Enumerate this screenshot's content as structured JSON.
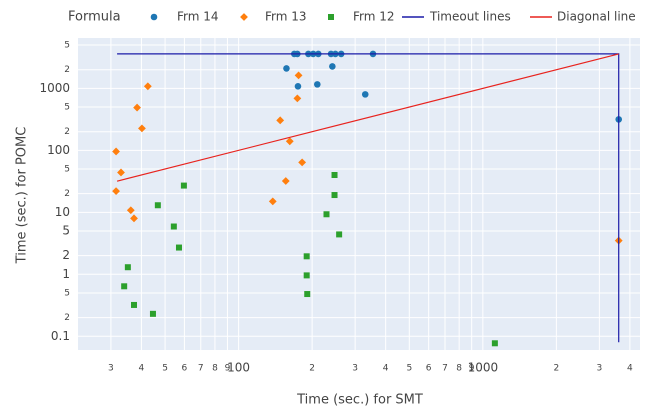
{
  "chart_data": {
    "type": "scatter",
    "x_label": "Time (sec.) for SMT",
    "y_label": "Time (sec.) for POMC",
    "legend_title": "Formula",
    "legend_position": "top",
    "xscale": "log",
    "yscale": "log",
    "grid": true,
    "xlim": [
      22,
      4400
    ],
    "ylim": [
      0.06,
      6500
    ],
    "xticks": [
      {
        "value": 30,
        "label": "3"
      },
      {
        "value": 40,
        "label": "4"
      },
      {
        "value": 50,
        "label": "5"
      },
      {
        "value": 60,
        "label": "6"
      },
      {
        "value": 70,
        "label": "7"
      },
      {
        "value": 80,
        "label": "8"
      },
      {
        "value": 90,
        "label": "9"
      },
      100,
      {
        "value": 200,
        "label": "2"
      },
      {
        "value": 300,
        "label": "3"
      },
      {
        "value": 400,
        "label": "4"
      },
      {
        "value": 500,
        "label": "5"
      },
      {
        "value": 600,
        "label": "6"
      },
      {
        "value": 700,
        "label": "7"
      },
      {
        "value": 800,
        "label": "8"
      },
      {
        "value": 900,
        "label": "9"
      },
      1000,
      {
        "value": 2000,
        "label": "2"
      },
      {
        "value": 3000,
        "label": "3"
      },
      {
        "value": 4000,
        "label": "4"
      }
    ],
    "yticks": [
      0.1,
      {
        "value": 0.2,
        "label": "2"
      },
      {
        "value": 0.5,
        "label": "5"
      },
      1,
      2,
      5,
      10,
      {
        "value": 20,
        "label": "2"
      },
      {
        "value": 50,
        "label": "5"
      },
      100,
      {
        "value": 200,
        "label": "2"
      },
      {
        "value": 500,
        "label": "5"
      },
      1000,
      {
        "value": 2000,
        "label": "2"
      },
      {
        "value": 5000,
        "label": "5"
      }
    ],
    "series": [
      {
        "name": "Frm 14",
        "color": "#1f77b4",
        "mode": "markers",
        "symbol": "circle",
        "x": [
          169,
          174,
          193,
          202,
          212,
          239,
          249,
          263,
          355,
          157,
          175,
          210,
          242,
          330,
          3600
        ],
        "values": [
          3600,
          3600,
          3600,
          3600,
          3600,
          3600,
          3600,
          3600,
          3600,
          2100,
          1080,
          1160,
          2260,
          800,
          316
        ]
      },
      {
        "name": "Frm 13",
        "color": "#ff7f0e",
        "mode": "markers",
        "symbol": "diamond",
        "x": [
          42.5,
          38.4,
          40.2,
          31.5,
          33,
          31.5,
          36.2,
          37.3,
          148,
          162,
          182,
          156,
          138,
          176,
          174,
          3600
        ],
        "values": [
          1080,
          490,
          226,
          96,
          44,
          22,
          10.8,
          8,
          305,
          140,
          64,
          32,
          15,
          1620,
          690,
          3.5
        ]
      },
      {
        "name": "Frm 12",
        "color": "#2ca02c",
        "mode": "markers",
        "symbol": "square",
        "x": [
          59.7,
          46.7,
          54.3,
          57,
          35.2,
          34,
          37.3,
          44.6,
          247,
          247,
          229,
          258,
          190,
          190,
          191,
          1120
        ],
        "values": [
          27,
          13,
          5.9,
          2.7,
          1.3,
          0.64,
          0.32,
          0.23,
          40,
          19,
          9.3,
          4.4,
          1.95,
          0.96,
          0.48,
          0.077
        ]
      },
      {
        "name": "Timeout lines",
        "color": "#1c1ca8",
        "mode": "lines",
        "x": [
          31.8,
          3600,
          3600
        ],
        "values": [
          3600,
          3600,
          0.08
        ]
      },
      {
        "name": "Diagonal line",
        "color": "#e8231e",
        "mode": "lines",
        "x": [
          31.8,
          3600
        ],
        "values": [
          31.8,
          3600
        ]
      }
    ]
  }
}
